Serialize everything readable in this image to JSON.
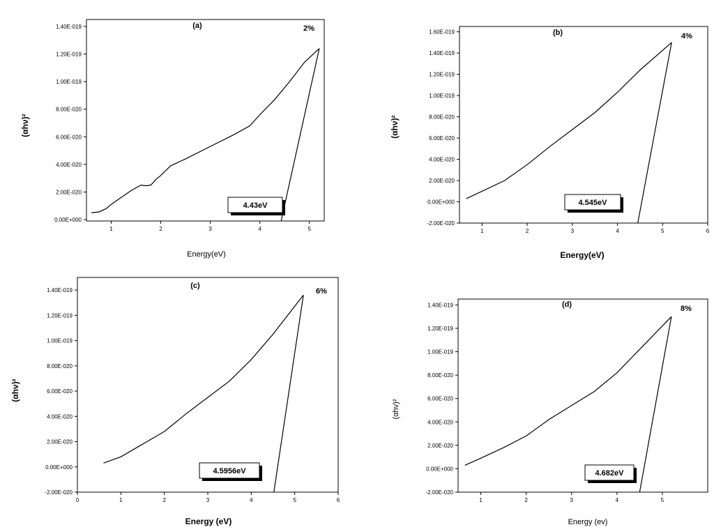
{
  "chart_data": [
    {
      "type": "line",
      "panel_label": "(a)",
      "percent_label": "2%",
      "band_gap_label": "4.43eV",
      "xlabel": "Energy(eV)",
      "ylabel": "(αhν)²",
      "xlim": [
        0.5,
        5.3
      ],
      "ylim": [
        -1e-21,
        1.45e-19
      ],
      "x_ticks": [
        1,
        2,
        3,
        4,
        5
      ],
      "x_tick_labels": [
        "1",
        "2",
        "3",
        "4",
        "5"
      ],
      "y_ticks": [
        0,
        2e-20,
        4e-20,
        6e-20,
        8e-20,
        1e-19,
        1.2e-19,
        1.4e-19
      ],
      "y_tick_labels": [
        "0.00E+000",
        "2.00E-020",
        "4.00E-020",
        "6.00E-020",
        "8.00E-020",
        "1.00E-019",
        "1.20E-019",
        "1.40E-019"
      ],
      "series": [
        {
          "x": [
            0.6,
            0.75,
            0.9,
            1.0,
            1.2,
            1.4,
            1.6,
            1.7,
            1.8,
            1.9,
            2.0,
            2.2,
            2.5,
            3.0,
            3.5,
            3.8,
            4.0,
            4.3,
            4.6,
            4.9,
            5.2
          ],
          "y": [
            5e-21,
            5.5e-21,
            8e-21,
            1.1e-20,
            1.6e-20,
            2.1e-20,
            2.5e-20,
            2.45e-20,
            2.5e-20,
            2.9e-20,
            3.2e-20,
            3.9e-20,
            4.4e-20,
            5.3e-20,
            6.2e-20,
            6.8e-20,
            7.6e-20,
            8.7e-20,
            1e-19,
            1.14e-19,
            1.24e-19
          ]
        }
      ],
      "tangent": {
        "x": [
          4.43,
          5.2
        ],
        "y": [
          -1e-21,
          1.24e-19
        ]
      }
    },
    {
      "type": "line",
      "panel_label": "(b)",
      "percent_label": "4%",
      "band_gap_label": "4.545eV",
      "xlabel": "Energy(eV)",
      "ylabel": "(αhν)²",
      "xlim": [
        0.5,
        6
      ],
      "ylim": [
        -2e-20,
        1.65e-19
      ],
      "x_ticks": [
        1,
        2,
        3,
        4,
        5,
        6
      ],
      "x_tick_labels": [
        "1",
        "2",
        "3",
        "4",
        "5",
        "6"
      ],
      "y_ticks": [
        -2e-20,
        0,
        2e-20,
        4e-20,
        6e-20,
        8e-20,
        1e-19,
        1.2e-19,
        1.4e-19,
        1.6e-19
      ],
      "y_tick_labels": [
        "-2.00E-020",
        "0.00E+000",
        "2.00E-020",
        "4.00E-020",
        "6.00E-020",
        "8.00E-020",
        "1.00E-019",
        "1.20E-019",
        "1.40E-019",
        "1.60E-019"
      ],
      "series": [
        {
          "x": [
            0.65,
            1.0,
            1.5,
            2.0,
            2.5,
            3.0,
            3.5,
            4.0,
            4.5,
            5.2
          ],
          "y": [
            3e-21,
            1e-20,
            2e-20,
            3.5e-20,
            5.2e-20,
            6.8e-20,
            8.4e-20,
            1.03e-19,
            1.24e-19,
            1.5e-19
          ]
        }
      ],
      "tangent": {
        "x": [
          4.45,
          5.2
        ],
        "y": [
          -2e-20,
          1.5e-19
        ]
      }
    },
    {
      "type": "line",
      "panel_label": "(c)",
      "percent_label": "6%",
      "band_gap_label": "4.5956eV",
      "xlabel": "Energy (eV)",
      "ylabel": "(αhν)²",
      "xlim": [
        0,
        6
      ],
      "ylim": [
        -2e-20,
        1.5e-19
      ],
      "x_ticks": [
        0,
        1,
        2,
        3,
        4,
        5,
        6
      ],
      "x_tick_labels": [
        "0",
        "1",
        "2",
        "3",
        "4",
        "5",
        "6"
      ],
      "y_ticks": [
        -2e-20,
        0,
        2e-20,
        4e-20,
        6e-20,
        8e-20,
        1e-19,
        1.2e-19,
        1.4e-19
      ],
      "y_tick_labels": [
        "-2.00E-020",
        "0.00E+000",
        "2.00E-020",
        "4.00E-020",
        "6.00E-020",
        "8.00E-020",
        "1.00E-019",
        "1.20E-019",
        "1.40E-019"
      ],
      "series": [
        {
          "x": [
            0.6,
            1.0,
            1.5,
            2.0,
            2.5,
            3.0,
            3.5,
            4.0,
            4.5,
            5.2
          ],
          "y": [
            3e-21,
            8e-21,
            1.8e-20,
            2.8e-20,
            4.2e-20,
            5.5e-20,
            6.8e-20,
            8.5e-20,
            1.05e-19,
            1.36e-19
          ]
        }
      ],
      "tangent": {
        "x": [
          4.52,
          5.2
        ],
        "y": [
          -2e-20,
          1.36e-19
        ]
      }
    },
    {
      "type": "line",
      "panel_label": "(d)",
      "percent_label": "8%",
      "band_gap_label": "4.682eV",
      "xlabel": "Energy (ev)",
      "ylabel": "(αhν)²",
      "xlim": [
        0.5,
        6
      ],
      "ylim": [
        -2e-20,
        1.45e-19
      ],
      "x_ticks": [
        1,
        2,
        3,
        4,
        5
      ],
      "x_tick_labels": [
        "1",
        "2",
        "3",
        "4",
        "5"
      ],
      "y_ticks": [
        -2e-20,
        0,
        2e-20,
        4e-20,
        6e-20,
        8e-20,
        1e-19,
        1.2e-19,
        1.4e-19
      ],
      "y_tick_labels": [
        "-2.00E-020",
        "0.00E+000",
        "2.00E-020",
        "4.00E-020",
        "6.00E-020",
        "8.00E-020",
        "1.00E-019",
        "1.20E-019",
        "1.40E-019"
      ],
      "series": [
        {
          "x": [
            0.65,
            1.0,
            1.5,
            2.0,
            2.5,
            3.0,
            3.5,
            4.0,
            4.5,
            5.2
          ],
          "y": [
            3e-21,
            9e-21,
            1.8e-20,
            2.8e-20,
            4.2e-20,
            5.4e-20,
            6.6e-20,
            8.2e-20,
            1.02e-19,
            1.3e-19
          ]
        }
      ],
      "tangent": {
        "x": [
          4.5,
          5.2
        ],
        "y": [
          -2e-20,
          1.3e-19
        ]
      }
    }
  ]
}
